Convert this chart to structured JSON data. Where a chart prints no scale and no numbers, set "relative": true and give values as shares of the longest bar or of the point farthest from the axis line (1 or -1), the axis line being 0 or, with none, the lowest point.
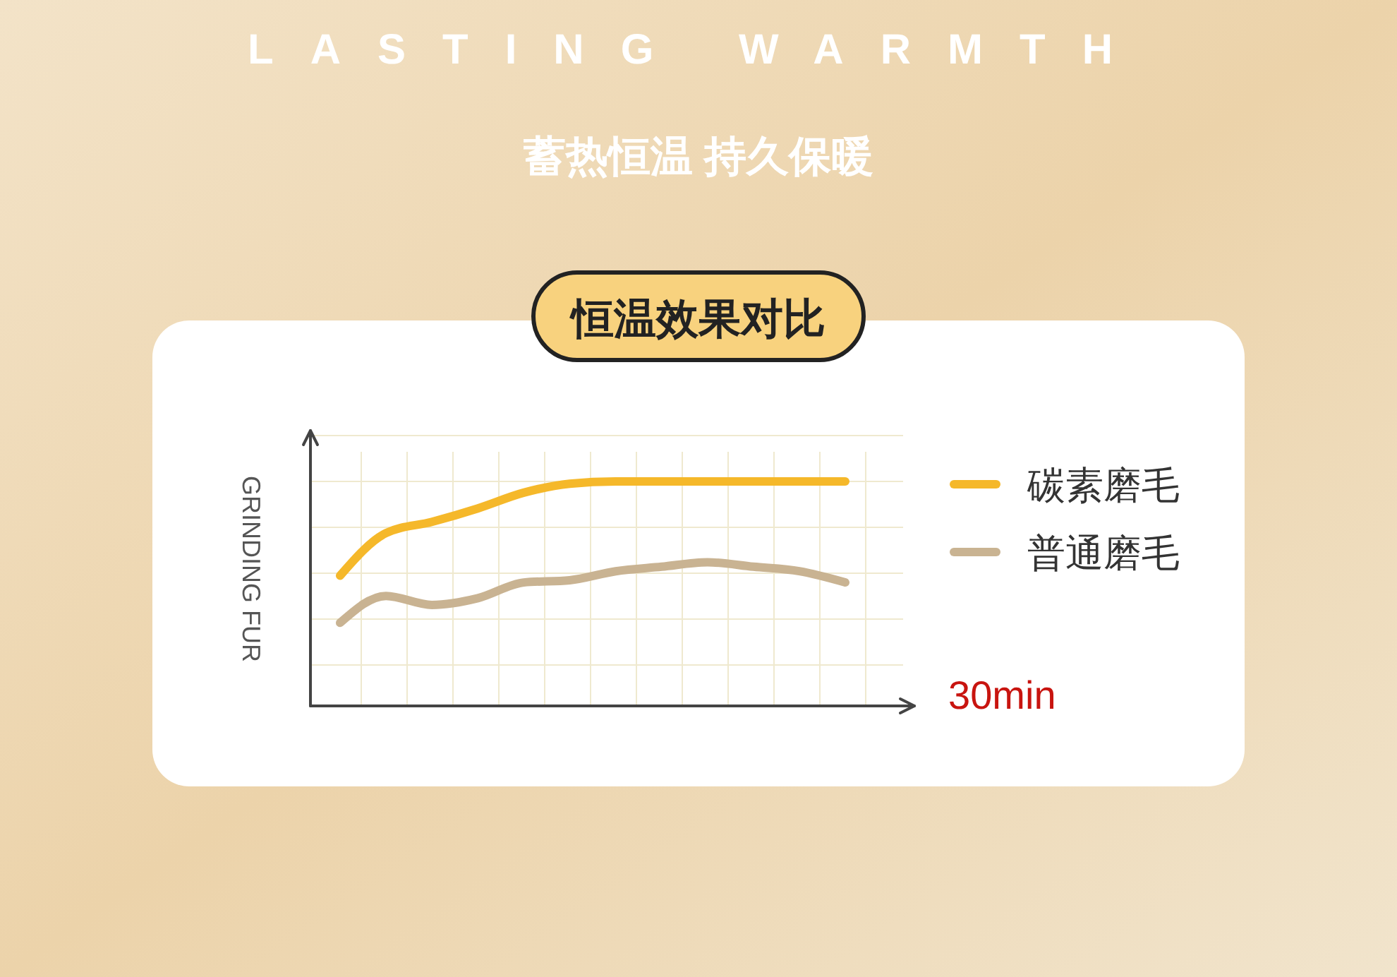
{
  "chart_data": {
    "type": "line",
    "title": "LASTING WARMTH",
    "subtitle": "蓄热恒温 持久保暖",
    "annotations": [
      "恒温效果对比"
    ],
    "ylabel": "GRINDING FUR",
    "xlabel": "30min",
    "relative": true,
    "grid": true,
    "legend": "right",
    "marker": "none",
    "line_style": "solid",
    "categories": [
      null,
      null,
      null,
      null,
      null,
      null,
      null,
      null,
      null,
      null,
      null,
      null
    ],
    "series": [
      {
        "name": "碳素磨毛",
        "color": "#f5b82a",
        "values": [
          0.58,
          0.77,
          0.82,
          0.88,
          0.95,
          0.99,
          1,
          1,
          1,
          1,
          1,
          1
        ]
      },
      {
        "name": "普通磨毛",
        "color": "#c9b392",
        "values": [
          0.37,
          0.49,
          0.45,
          0.48,
          0.55,
          0.56,
          0.6,
          0.62,
          0.64,
          0.62,
          0.6,
          0.55
        ]
      }
    ]
  }
}
